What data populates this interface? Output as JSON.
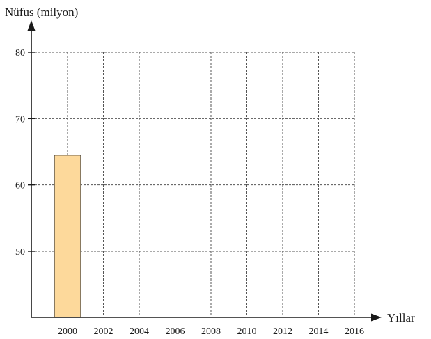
{
  "chart_data": {
    "type": "bar",
    "title": "",
    "ylabel": "Nüfus (milyon)",
    "xlabel": "Yıllar",
    "categories": [
      "2000",
      "2002",
      "2004",
      "2006",
      "2008",
      "2010",
      "2012",
      "2014",
      "2016"
    ],
    "x_ticks": [
      "2000",
      "2002",
      "2004",
      "2006",
      "2008",
      "2010",
      "2012",
      "2014",
      "2016"
    ],
    "y_ticks": [
      50,
      60,
      70,
      80
    ],
    "ylim": [
      40,
      80
    ],
    "grid": true,
    "grid_style": "dashed",
    "series": [
      {
        "values": [
          64.5,
          null,
          null,
          null,
          null,
          null,
          null,
          null,
          null
        ],
        "color": "#fdd99b"
      }
    ]
  },
  "colors": {
    "bar_fill": "#fdd99b",
    "bar_stroke": "#3a3a3a",
    "axis": "#1a1a1a",
    "grid": "#555555"
  }
}
